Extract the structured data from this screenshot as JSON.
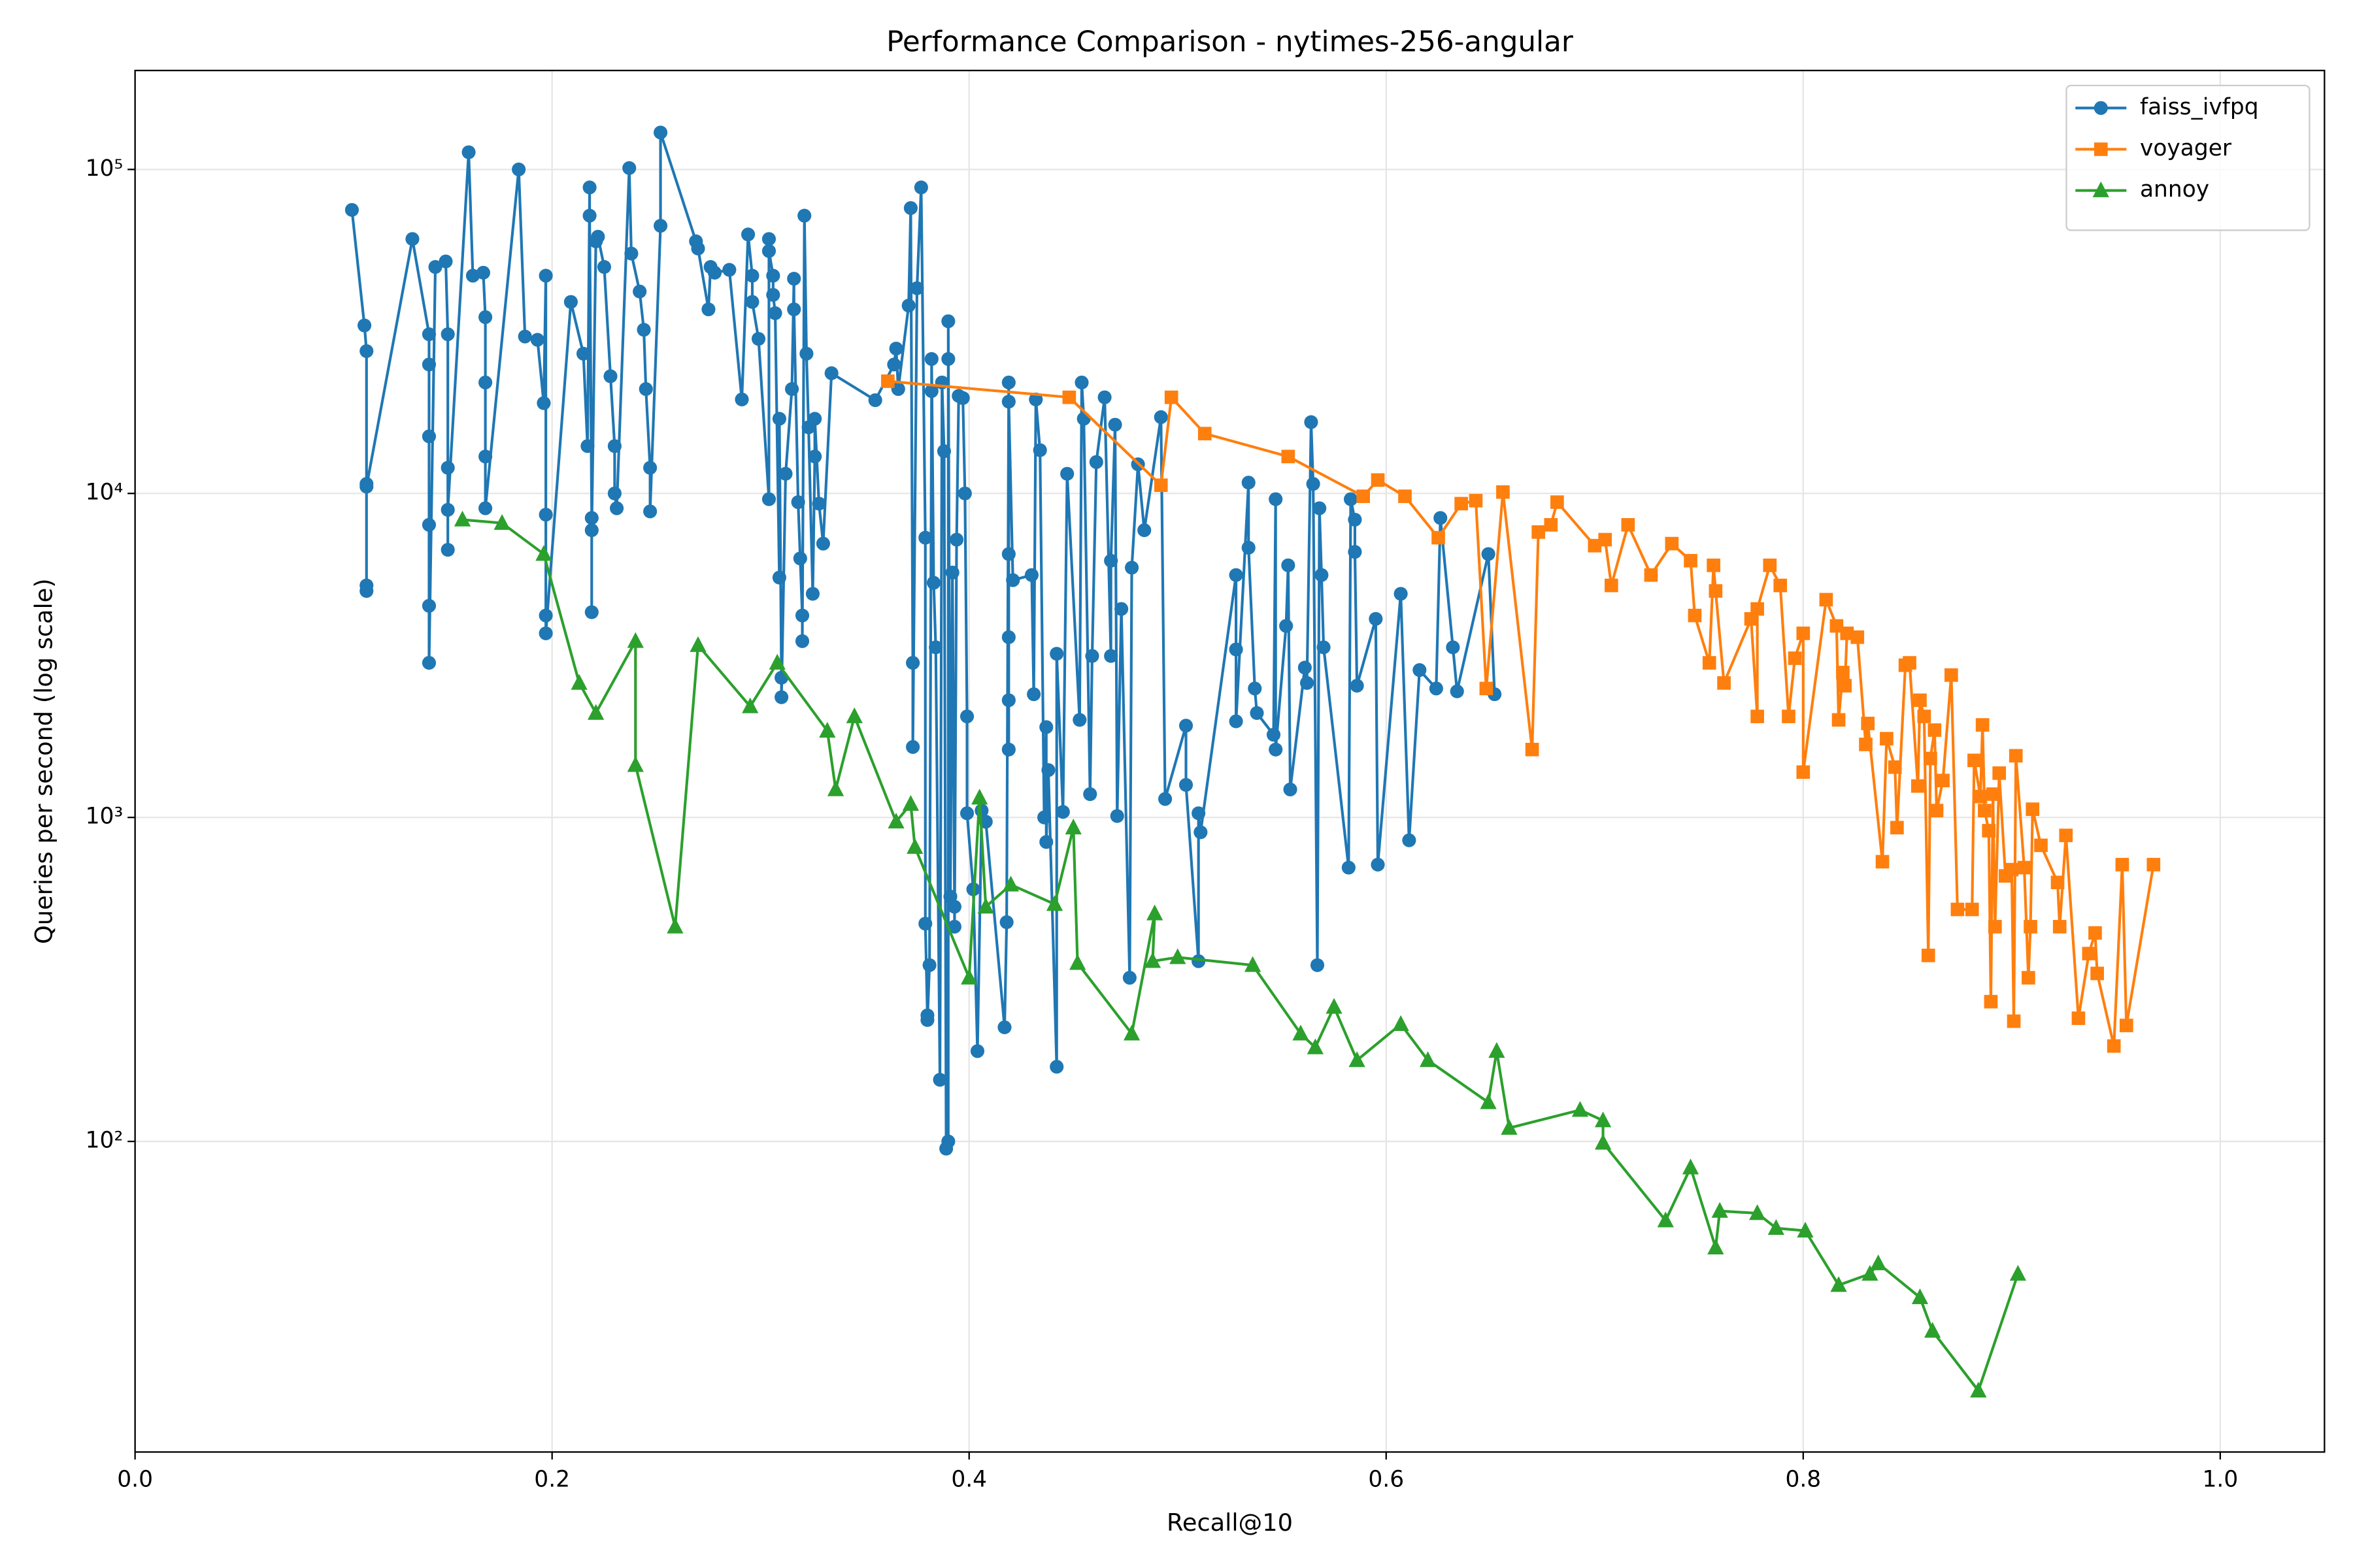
{
  "chart_data": {
    "type": "line",
    "title": "Performance Comparison - nytimes-256-angular",
    "x_label": "Recall@10",
    "y_label": "Queries per second (log scale)",
    "yscale": "log",
    "grid": true,
    "legend": "upper right",
    "xlim": [
      0,
      1.05
    ],
    "xticks": [
      {
        "value": 0,
        "label": "0.0"
      },
      0.2,
      0.4,
      0.6,
      0.8,
      {
        "value": 1,
        "label": "1.0"
      }
    ],
    "ylim": [
      11,
      202000
    ],
    "yticks": [
      {
        "value": 100,
        "label": "10²"
      },
      {
        "value": 1000,
        "label": "10³"
      },
      {
        "value": 10000,
        "label": "10⁴"
      },
      {
        "value": 100000,
        "label": "10⁵"
      }
    ],
    "series": [
      {
        "name": "faiss_ivfpq",
        "color": "#1f77b4",
        "marker": "circle",
        "x": [
          0.104,
          0.11,
          0.111,
          0.111,
          0.111,
          0.111,
          0.111,
          0.133,
          0.141,
          0.141,
          0.141,
          0.141,
          0.141,
          0.141,
          0.144,
          0.149,
          0.15,
          0.15,
          0.15,
          0.15,
          0.16,
          0.162,
          0.167,
          0.168,
          0.168,
          0.168,
          0.168,
          0.184,
          0.187,
          0.193,
          0.196,
          0.197,
          0.197,
          0.197,
          0.197,
          0.209,
          0.215,
          0.217,
          0.218,
          0.218,
          0.219,
          0.219,
          0.219,
          0.221,
          0.222,
          0.225,
          0.228,
          0.23,
          0.23,
          0.231,
          0.237,
          0.238,
          0.242,
          0.244,
          0.245,
          0.247,
          0.247,
          0.252,
          0.252,
          0.269,
          0.27,
          0.275,
          0.276,
          0.278,
          0.285,
          0.291,
          0.294,
          0.296,
          0.296,
          0.299,
          0.304,
          0.304,
          0.304,
          0.306,
          0.306,
          0.307,
          0.309,
          0.309,
          0.31,
          0.31,
          0.312,
          0.315,
          0.316,
          0.316,
          0.318,
          0.319,
          0.32,
          0.32,
          0.321,
          0.322,
          0.323,
          0.325,
          0.326,
          0.326,
          0.328,
          0.33,
          0.334,
          0.355,
          0.364,
          0.365,
          0.366,
          0.371,
          0.372,
          0.373,
          0.373,
          0.375,
          0.377,
          0.379,
          0.379,
          0.38,
          0.38,
          0.381,
          0.382,
          0.382,
          0.383,
          0.384,
          0.386,
          0.387,
          0.388,
          0.389,
          0.39,
          0.39,
          0.39,
          0.391,
          0.392,
          0.393,
          0.393,
          0.394,
          0.395,
          0.397,
          0.398,
          0.399,
          0.399,
          0.402,
          0.404,
          0.406,
          0.408,
          0.417,
          0.418,
          0.419,
          0.419,
          0.419,
          0.419,
          0.419,
          0.419,
          0.421,
          0.43,
          0.431,
          0.432,
          0.434,
          0.436,
          0.437,
          0.437,
          0.438,
          0.442,
          0.442,
          0.445,
          0.447,
          0.453,
          0.454,
          0.455,
          0.458,
          0.459,
          0.461,
          0.465,
          0.468,
          0.468,
          0.47,
          0.471,
          0.473,
          0.477,
          0.478,
          0.481,
          0.484,
          0.492,
          0.494,
          0.504,
          0.504,
          0.51,
          0.51,
          0.511,
          0.528,
          0.528,
          0.528,
          0.534,
          0.534,
          0.537,
          0.538,
          0.546,
          0.547,
          0.547,
          0.552,
          0.553,
          0.554,
          0.561,
          0.562,
          0.564,
          0.565,
          0.567,
          0.568,
          0.569,
          0.57,
          0.582,
          0.583,
          0.585,
          0.585,
          0.586,
          0.595,
          0.596,
          0.607,
          0.611,
          0.616,
          0.624,
          0.626,
          0.632,
          0.634,
          0.649,
          0.652
        ],
        "values": [
          75000,
          33000,
          27500,
          10700,
          5000,
          5200,
          10500,
          61000,
          31000,
          25000,
          15000,
          8000,
          4500,
          3000,
          50000,
          52000,
          31000,
          12000,
          6700,
          8900,
          113000,
          47000,
          48000,
          35000,
          22000,
          13000,
          9000,
          100000,
          30500,
          29800,
          19000,
          47000,
          8600,
          4200,
          3700,
          39000,
          27000,
          14000,
          88000,
          72000,
          8400,
          4300,
          7700,
          60000,
          62000,
          50000,
          23000,
          14000,
          10000,
          9000,
          101000,
          55000,
          42000,
          32000,
          21000,
          12000,
          8800,
          67000,
          130000,
          60000,
          57000,
          37000,
          50000,
          48000,
          49000,
          19500,
          63000,
          47000,
          39000,
          30000,
          9600,
          61000,
          56000,
          47000,
          41000,
          36000,
          5500,
          17000,
          2700,
          2350,
          11500,
          21000,
          46000,
          37000,
          9400,
          6300,
          4200,
          3500,
          72000,
          27000,
          16000,
          4900,
          13000,
          17000,
          9300,
          7000,
          23500,
          19400,
          25000,
          28000,
          21000,
          38000,
          76000,
          3000,
          1650,
          43000,
          88000,
          7300,
          470,
          245,
          237,
          350,
          20700,
          26000,
          5300,
          3350,
          155,
          22000,
          13500,
          95,
          100,
          26000,
          34000,
          570,
          5700,
          530,
          460,
          7200,
          20000,
          19700,
          10000,
          2050,
          1030,
          600,
          190,
          1050,
          970,
          225,
          475,
          22000,
          1620,
          6500,
          3600,
          2300,
          19200,
          5400,
          5600,
          2400,
          19500,
          13600,
          1000,
          1900,
          840,
          1400,
          170,
          3200,
          1040,
          11500,
          2000,
          22000,
          17000,
          1180,
          3150,
          12500,
          19800,
          3150,
          6200,
          16300,
          1010,
          4400,
          320,
          5900,
          12300,
          7700,
          17200,
          1140,
          1920,
          1260,
          360,
          1030,
          900,
          5600,
          3300,
          1980,
          10800,
          6800,
          2500,
          2100,
          1800,
          9600,
          1620,
          3900,
          6000,
          1220,
          2900,
          2600,
          16600,
          10700,
          350,
          9000,
          5600,
          3350,
          700,
          9600,
          8300,
          6600,
          2550,
          4100,
          715,
          4900,
          850,
          2850,
          2500,
          8400,
          3350,
          2450,
          6500,
          2400
        ]
      },
      {
        "name": "voyager",
        "color": "#ff7f0e",
        "marker": "square",
        "x": [
          0.361,
          0.448,
          0.492,
          0.497,
          0.513,
          0.553,
          0.589,
          0.596,
          0.609,
          0.625,
          0.636,
          0.643,
          0.648,
          0.656,
          0.67,
          0.673,
          0.679,
          0.682,
          0.7,
          0.705,
          0.708,
          0.716,
          0.727,
          0.737,
          0.746,
          0.748,
          0.755,
          0.757,
          0.758,
          0.762,
          0.775,
          0.778,
          0.778,
          0.784,
          0.789,
          0.793,
          0.796,
          0.8,
          0.8,
          0.811,
          0.816,
          0.817,
          0.819,
          0.82,
          0.821,
          0.826,
          0.83,
          0.831,
          0.838,
          0.84,
          0.844,
          0.845,
          0.849,
          0.851,
          0.855,
          0.856,
          0.858,
          0.86,
          0.861,
          0.863,
          0.864,
          0.867,
          0.871,
          0.874,
          0.881,
          0.882,
          0.885,
          0.886,
          0.887,
          0.889,
          0.89,
          0.891,
          0.892,
          0.894,
          0.897,
          0.9,
          0.901,
          0.902,
          0.906,
          0.908,
          0.909,
          0.91,
          0.914,
          0.922,
          0.923,
          0.926,
          0.932,
          0.937,
          0.94,
          0.941,
          0.949,
          0.953,
          0.955,
          0.968
        ],
        "values": [
          22200,
          19800,
          10600,
          19800,
          15300,
          13000,
          9800,
          11000,
          9800,
          7300,
          9300,
          9500,
          2500,
          10100,
          1620,
          7600,
          8000,
          9400,
          6900,
          7200,
          5200,
          8000,
          5600,
          7000,
          6200,
          4200,
          3000,
          6000,
          5000,
          2600,
          4100,
          2050,
          4400,
          6000,
          5200,
          2050,
          3100,
          3700,
          1380,
          4700,
          3900,
          2000,
          2800,
          2550,
          3700,
          3600,
          1680,
          1950,
          730,
          1750,
          1430,
          930,
          2950,
          3000,
          1250,
          2300,
          2050,
          375,
          1520,
          1860,
          1050,
          1300,
          2750,
          520,
          520,
          1500,
          1160,
          1930,
          1050,
          910,
          270,
          1180,
          460,
          1370,
          660,
          690,
          235,
          1550,
          700,
          320,
          460,
          1060,
          820,
          630,
          460,
          880,
          240,
          380,
          440,
          330,
          197,
          715,
          228,
          715
        ]
      },
      {
        "name": "annoy",
        "color": "#2ca02c",
        "marker": "triangle",
        "x": [
          0.157,
          0.176,
          0.196,
          0.213,
          0.221,
          0.24,
          0.24,
          0.259,
          0.27,
          0.295,
          0.308,
          0.332,
          0.336,
          0.345,
          0.365,
          0.372,
          0.374,
          0.4,
          0.405,
          0.408,
          0.42,
          0.441,
          0.45,
          0.452,
          0.478,
          0.489,
          0.488,
          0.5,
          0.536,
          0.559,
          0.566,
          0.575,
          0.586,
          0.607,
          0.62,
          0.649,
          0.653,
          0.659,
          0.693,
          0.704,
          0.704,
          0.734,
          0.746,
          0.758,
          0.76,
          0.778,
          0.787,
          0.801,
          0.817,
          0.832,
          0.836,
          0.856,
          0.862,
          0.884,
          0.903
        ],
        "values": [
          8300,
          8100,
          6500,
          2600,
          2100,
          3500,
          1450,
          460,
          3400,
          2200,
          3000,
          1850,
          1220,
          2050,
          970,
          1100,
          810,
          320,
          1150,
          530,
          620,
          540,
          930,
          355,
          215,
          505,
          360,
          370,
          350,
          215,
          195,
          260,
          178,
          230,
          178,
          132,
          190,
          110,
          125,
          116,
          99,
          57,
          83,
          47,
          61,
          60,
          54,
          53,
          36,
          39,
          42,
          33,
          26,
          17,
          39
        ]
      }
    ]
  }
}
